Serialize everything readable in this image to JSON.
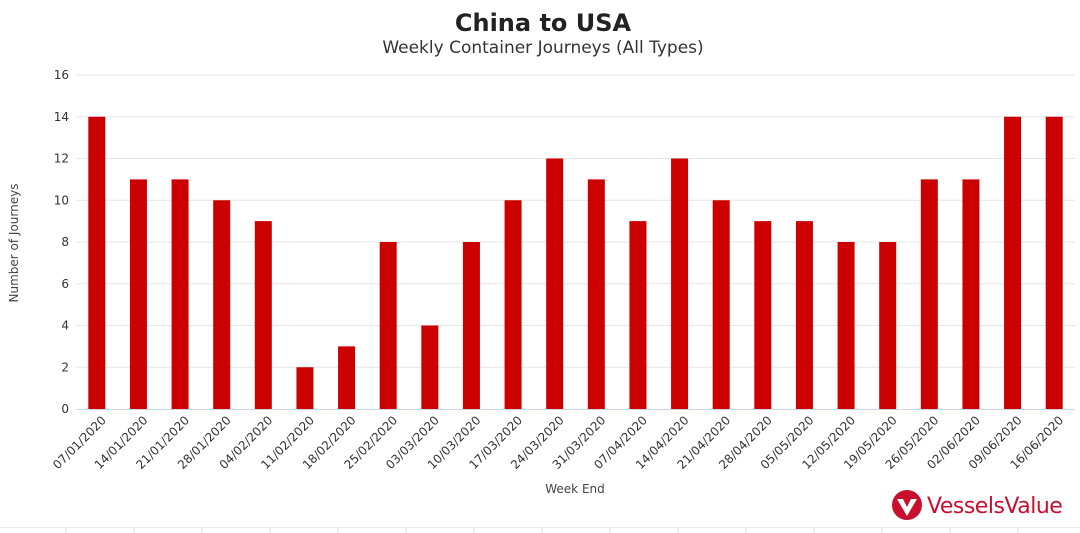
{
  "chart_data": {
    "type": "bar",
    "title": "China to USA",
    "subtitle": "Weekly Container Journeys (All Types)",
    "xlabel": "Week End",
    "ylabel": "Number of Journeys",
    "ylim": [
      0,
      16
    ],
    "yticks": [
      0,
      2,
      4,
      6,
      8,
      10,
      12,
      14,
      16
    ],
    "grid": true,
    "categories": [
      "07/01/2020",
      "14/01/2020",
      "21/01/2020",
      "28/01/2020",
      "04/02/2020",
      "11/02/2020",
      "18/02/2020",
      "25/02/2020",
      "03/03/2020",
      "10/03/2020",
      "17/03/2020",
      "24/03/2020",
      "31/03/2020",
      "07/04/2020",
      "14/04/2020",
      "21/04/2020",
      "28/04/2020",
      "05/05/2020",
      "12/05/2020",
      "19/05/2020",
      "26/05/2020",
      "02/06/2020",
      "09/06/2020",
      "16/06/2020"
    ],
    "values": [
      14,
      11,
      11,
      10,
      9,
      2,
      3,
      8,
      4,
      8,
      10,
      12,
      11,
      9,
      12,
      10,
      9,
      9,
      8,
      8,
      11,
      11,
      14,
      14
    ],
    "bar_color": "#cc0000"
  },
  "logo": {
    "text": "VesselsValue",
    "color": "#c8102e",
    "icon": "vesselsvalue-logo-icon"
  }
}
